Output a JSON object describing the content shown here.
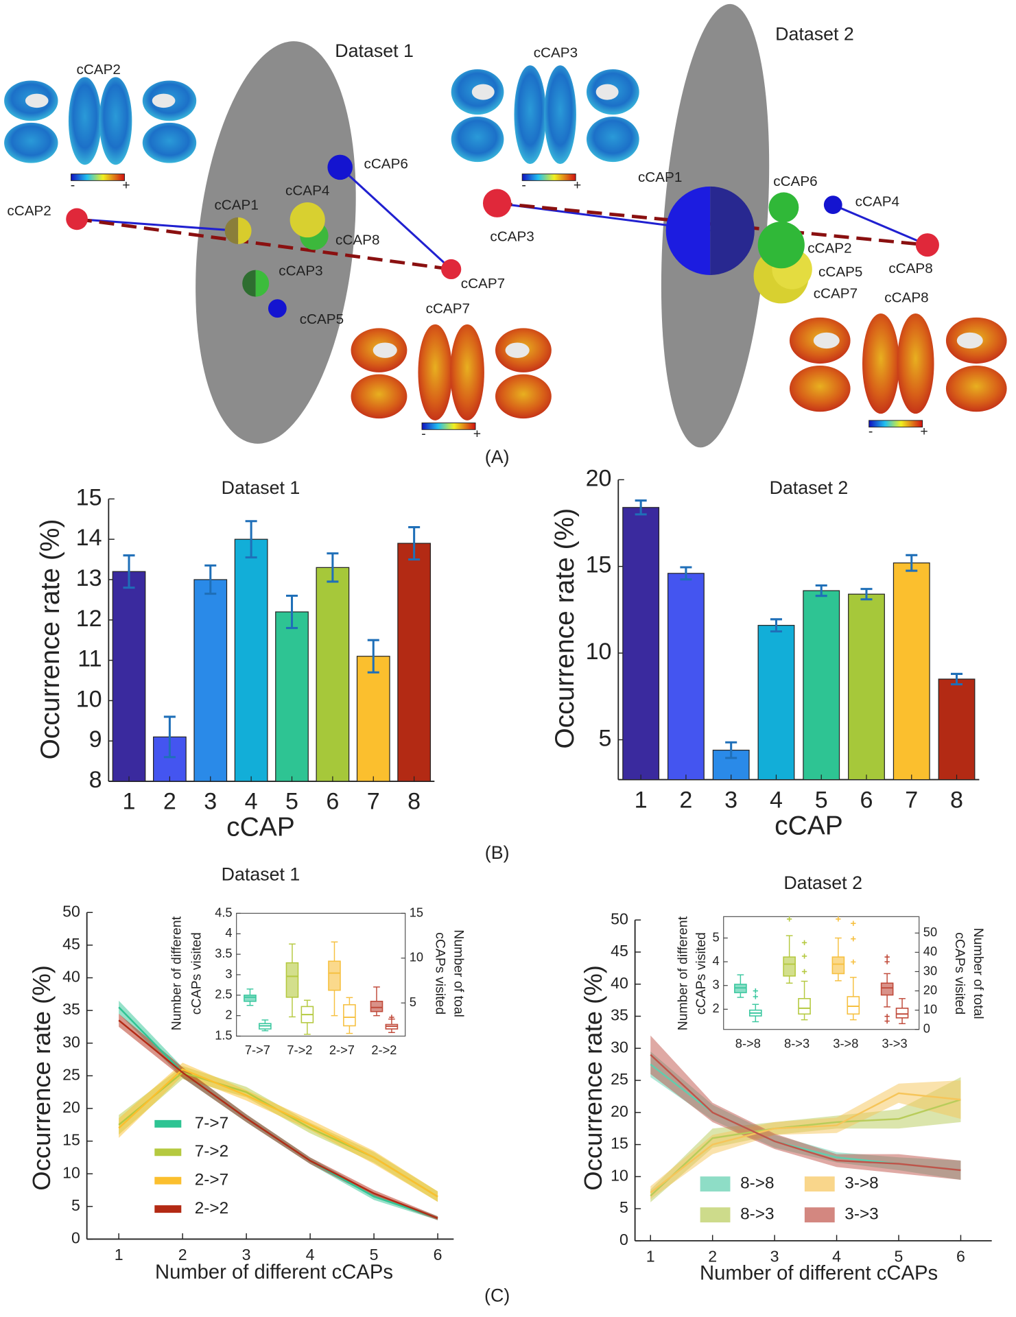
{
  "panel_labels": [
    "(A)",
    "(B)",
    "(C)"
  ],
  "panel_a": {
    "colorbar_labels": [
      "-",
      "+"
    ],
    "datasets": [
      {
        "title": "Dataset 1",
        "brain_labels": [
          "cCAP2",
          "cCAP7"
        ],
        "node_labels": [
          "cCAP2",
          "cCAP1",
          "cCAP8",
          "cCAP4",
          "cCAP3",
          "cCAP5",
          "cCAP6",
          "cCAP7"
        ]
      },
      {
        "title": "Dataset 2",
        "brain_labels": [
          "cCAP3",
          "cCAP8"
        ],
        "node_labels": [
          "cCAP3",
          "cCAP1",
          "cCAP6",
          "cCAP5",
          "cCAP7",
          "cCAP2",
          "cCAP4",
          "cCAP8"
        ]
      }
    ]
  },
  "chart_data": [
    {
      "type": "bar",
      "title": "Dataset 1",
      "x_label": "cCAP",
      "y_label": "Occurrence rate (%)",
      "categories": [
        "1",
        "2",
        "3",
        "4",
        "5",
        "6",
        "7",
        "8"
      ],
      "values": [
        13.2,
        9.1,
        13.0,
        14.0,
        12.2,
        13.3,
        11.1,
        13.9
      ],
      "errors": [
        0.4,
        0.5,
        0.35,
        0.45,
        0.4,
        0.35,
        0.4,
        0.4
      ],
      "colors": [
        "#3a2a9e",
        "#4455f0",
        "#2a8ae8",
        "#12aed8",
        "#2ec493",
        "#a6c83a",
        "#fbbf2e",
        "#b32a14"
      ],
      "error_color": "#1f6fb8",
      "ylim": [
        8,
        15
      ],
      "yticks": [
        8,
        9,
        10,
        11,
        12,
        13,
        14,
        15
      ]
    },
    {
      "type": "bar",
      "title": "Dataset 2",
      "x_label": "cCAP",
      "y_label": "Occurrence rate (%)",
      "categories": [
        "1",
        "2",
        "3",
        "4",
        "5",
        "6",
        "7",
        "8"
      ],
      "values": [
        18.4,
        14.6,
        4.4,
        11.6,
        13.6,
        13.4,
        15.2,
        8.5
      ],
      "errors": [
        0.4,
        0.35,
        0.45,
        0.35,
        0.3,
        0.3,
        0.45,
        0.3
      ],
      "colors": [
        "#3a2a9e",
        "#4455f0",
        "#2a8ae8",
        "#12aed8",
        "#2ec493",
        "#a6c83a",
        "#fbbf2e",
        "#b32a14"
      ],
      "error_color": "#1f6fb8",
      "ylim": [
        2.7,
        20
      ],
      "yticks": [
        5,
        10,
        15,
        20
      ]
    },
    {
      "type": "line",
      "title": "Dataset 1",
      "x_label": "Number of different cCAPs",
      "y_label": "Occurrence rate (%)",
      "x": [
        1,
        2,
        3,
        4,
        5,
        6
      ],
      "xlim": [
        0.5,
        6.25
      ],
      "xticks": [
        1,
        2,
        3,
        4,
        5,
        6
      ],
      "ylim": [
        0,
        50
      ],
      "yticks": [
        0,
        5,
        10,
        15,
        20,
        25,
        30,
        35,
        40,
        45,
        50
      ],
      "legend": "lower left",
      "legend_columns": 1,
      "series": [
        {
          "name": "7->7",
          "color": "#2ec493",
          "values": [
            35.5,
            25.5,
            18.5,
            12,
            6.5,
            3.2
          ],
          "errors": [
            1,
            0.8,
            0.6,
            0.5,
            0.5,
            0.3
          ]
        },
        {
          "name": "7->2",
          "color": "#b5c940",
          "values": [
            17.5,
            25.5,
            22.5,
            17,
            12.5,
            6.5
          ],
          "errors": [
            1.5,
            1,
            0.8,
            0.8,
            0.8,
            0.8
          ]
        },
        {
          "name": "2->7",
          "color": "#fbbf2e",
          "values": [
            17,
            26,
            22,
            17.5,
            12.5,
            6.5
          ],
          "errors": [
            1.5,
            1,
            0.8,
            0.8,
            1,
            0.8
          ]
        },
        {
          "name": "2->2",
          "color": "#b32a14",
          "values": [
            33.5,
            25.5,
            18.5,
            12,
            7,
            3.2
          ],
          "errors": [
            1,
            0.8,
            0.6,
            0.5,
            0.5,
            0.3
          ]
        }
      ]
    },
    {
      "type": "line",
      "title": "Dataset 2",
      "x_label": "Number of different cCAPs",
      "y_label": "Occurrence rate (%)",
      "x": [
        1,
        2,
        3,
        4,
        5,
        6
      ],
      "xlim": [
        0.75,
        6.5
      ],
      "xticks": [
        1,
        2,
        3,
        4,
        5,
        6
      ],
      "ylim": [
        0,
        50
      ],
      "yticks": [
        0,
        5,
        10,
        15,
        20,
        25,
        30,
        35,
        40,
        45,
        50
      ],
      "legend": "lower left",
      "legend_columns": 2,
      "series": [
        {
          "name": "8->8",
          "color": "#5ecfae",
          "values": [
            27.5,
            20,
            15.5,
            13,
            12,
            11
          ],
          "errors": [
            2,
            1.2,
            1,
            0.8,
            1,
            1.5
          ]
        },
        {
          "name": "8->3",
          "color": "#b8cc5a",
          "values": [
            7,
            16,
            17.5,
            18.5,
            19,
            22
          ],
          "errors": [
            1,
            1.5,
            1,
            1,
            1.5,
            3.5
          ]
        },
        {
          "name": "3->8",
          "color": "#f6c55a",
          "values": [
            7.5,
            15,
            17.5,
            18,
            23,
            22
          ],
          "errors": [
            1,
            1.5,
            1,
            1.2,
            1.5,
            3
          ]
        },
        {
          "name": "3->3",
          "color": "#c0544a",
          "values": [
            29,
            20,
            15.5,
            12.5,
            12,
            11
          ],
          "errors": [
            3,
            1.5,
            1.2,
            1,
            1.5,
            1.5
          ]
        }
      ]
    },
    {
      "type": "box",
      "categories": [
        "7->7",
        "7->2",
        "2->7",
        "2->2"
      ],
      "y_label": [
        "Number of different",
        "cCAPs visited"
      ],
      "y2_label": [
        "Number of toal",
        "cCAPs visited"
      ],
      "ylim": [
        1.5,
        4.5
      ],
      "yticks": [
        1.5,
        2,
        2.5,
        3,
        3.5,
        4,
        4.5
      ],
      "y2lim": [
        1.3,
        15
      ],
      "y2ticks": [
        5,
        10,
        15
      ],
      "colors": [
        "#3cc8a0",
        "#b5c940",
        "#f6c040",
        "#c04a3a"
      ],
      "series": [
        {
          "axis": "y",
          "filled": true,
          "stats": [
            [
              2.25,
              2.35,
              2.45,
              2.5,
              2.65
            ],
            [
              1.97,
              2.45,
              2.96,
              3.29,
              3.75
            ],
            [
              2.0,
              2.62,
              3.04,
              3.33,
              3.8
            ],
            [
              2.0,
              2.1,
              2.2,
              2.35,
              2.7
            ]
          ],
          "outliers": [
            [],
            [],
            [],
            []
          ]
        },
        {
          "axis": "y2",
          "filled": false,
          "stats": [
            [
              1.9,
              2.1,
              2.45,
              2.7,
              3.1
            ],
            [
              1.5,
              2.8,
              3.7,
              4.6,
              5.3
            ],
            [
              1.6,
              2.45,
              3.4,
              4.8,
              5.6
            ],
            [
              1.7,
              2.1,
              2.4,
              2.6,
              3.2
            ]
          ],
          "outliers": [
            [],
            [],
            [],
            [
              3.4
            ]
          ]
        }
      ]
    },
    {
      "type": "box",
      "categories": [
        "8->8",
        "8->3",
        "3->8",
        "3->3"
      ],
      "y_label": [
        "Number of different",
        "cCAPs visited"
      ],
      "y2_label": [
        "Number of total",
        "cCAPs visited"
      ],
      "ylim": [
        1.15,
        5.9
      ],
      "yticks": [
        2,
        3,
        4,
        5
      ],
      "y2lim": [
        0,
        58.5
      ],
      "y2ticks": [
        0,
        10,
        20,
        30,
        40,
        50
      ],
      "colors": [
        "#3cc8a0",
        "#b5c940",
        "#f6c040",
        "#c04a3a"
      ],
      "series": [
        {
          "axis": "y",
          "filled": true,
          "stats": [
            [
              2.5,
              2.7,
              2.9,
              3.05,
              3.45
            ],
            [
              3.1,
              3.4,
              3.9,
              4.2,
              5.1
            ],
            [
              3.2,
              3.5,
              3.9,
              4.2,
              5.0
            ],
            [
              2.1,
              2.6,
              2.9,
              3.1,
              3.5
            ]
          ],
          "outliers": [
            [],
            [
              5.8
            ],
            [
              5.8
            ],
            [
              1.5,
              1.7,
              4.0,
              4.2
            ]
          ]
        },
        {
          "axis": "y2",
          "filled": false,
          "stats": [
            [
              4,
              7,
              8.5,
              10,
              13
            ],
            [
              5,
              8,
              11,
              16,
              25
            ],
            [
              5,
              8,
              12,
              17,
              27
            ],
            [
              3,
              6,
              8,
              11,
              16
            ]
          ],
          "outliers": [
            [
              17,
              20
            ],
            [
              30,
              38,
              45
            ],
            [
              35,
              47,
              55
            ],
            []
          ]
        }
      ]
    }
  ]
}
